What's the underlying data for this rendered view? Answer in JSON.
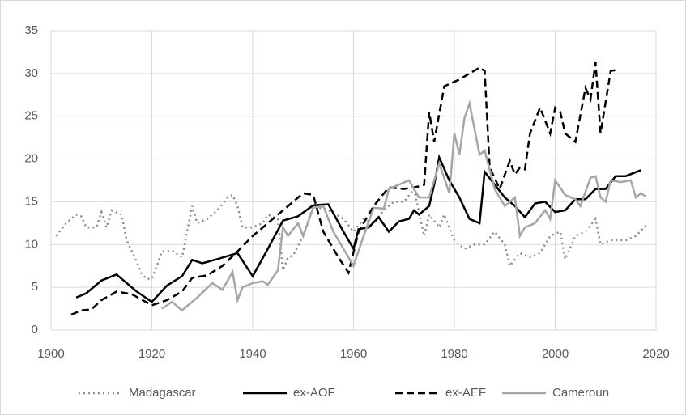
{
  "chart_data": {
    "type": "line",
    "xlim": [
      1900,
      2020
    ],
    "xticks": [
      1900,
      1920,
      1940,
      1960,
      1980,
      2000,
      2020
    ],
    "ylim": [
      0,
      35
    ],
    "yticks": [
      0,
      5,
      10,
      15,
      20,
      25,
      30,
      35
    ],
    "grid": true,
    "legend": "bottom",
    "series": [
      {
        "name": "Madagascar",
        "color": "#8c8c8c",
        "style": "dotted",
        "x": [
          1901,
          1903,
          1905,
          1906,
          1907,
          1909,
          1910,
          1911,
          1912,
          1914,
          1915,
          1917,
          1918,
          1919,
          1920,
          1921,
          1922,
          1924,
          1926,
          1928,
          1929,
          1931,
          1933,
          1935,
          1936,
          1937,
          1938,
          1940,
          1942,
          1943,
          1945,
          1946,
          1947,
          1948,
          1950,
          1952,
          1955,
          1958,
          1960,
          1962,
          1964,
          1966,
          1968,
          1970,
          1972,
          1974,
          1975,
          1977,
          1978,
          1980,
          1982,
          1984,
          1986,
          1988,
          1990,
          1991,
          1993,
          1995,
          1997,
          1999,
          2001,
          2002,
          2004,
          2006,
          2008,
          2009,
          2011,
          2014,
          2016,
          2018
        ],
        "values": [
          11,
          12.5,
          13.5,
          13.3,
          12,
          12,
          13.8,
          12,
          14,
          13.5,
          10.5,
          8,
          6.5,
          6,
          6,
          7.5,
          9.2,
          9.3,
          8.5,
          14.5,
          12.5,
          13,
          14,
          15.5,
          15.8,
          14.5,
          12,
          12,
          12.5,
          13.5,
          13,
          7,
          8.5,
          8.7,
          11,
          14.5,
          14,
          13,
          11.5,
          13,
          12.5,
          14,
          15,
          15,
          16.5,
          11,
          13.5,
          12,
          13.5,
          10.5,
          9.5,
          10,
          10,
          11.5,
          10,
          7.5,
          9,
          8.5,
          9,
          11,
          11.5,
          8.3,
          11,
          11.5,
          13,
          10,
          10.5,
          10.5,
          11,
          12.2
        ]
      },
      {
        "name": "ex-AOF",
        "color": "#000000",
        "style": "solid",
        "x": [
          1905,
          1907,
          1910,
          1913,
          1917,
          1920,
          1923,
          1926,
          1928,
          1930,
          1933,
          1937,
          1940,
          1943,
          1946,
          1949,
          1952,
          1955,
          1958,
          1960,
          1961,
          1963,
          1965,
          1967,
          1969,
          1971,
          1972,
          1973,
          1975,
          1976,
          1977,
          1979,
          1981,
          1983,
          1985,
          1986,
          1988,
          1990,
          1992,
          1994,
          1996,
          1998,
          2000,
          2002,
          2004,
          2006,
          2008,
          2010,
          2012,
          2014,
          2017
        ],
        "values": [
          3.8,
          4.3,
          5.8,
          6.5,
          4.5,
          3.3,
          5.2,
          6.3,
          8.2,
          7.8,
          8.3,
          9,
          6.3,
          9.5,
          12.8,
          13.3,
          14.6,
          14.7,
          11.5,
          9.5,
          11.8,
          12,
          13.2,
          11.5,
          12.7,
          13,
          14,
          13.5,
          14.5,
          17,
          20.2,
          17.5,
          15.5,
          13,
          12.5,
          18.5,
          17,
          15.5,
          14.5,
          13.2,
          14.8,
          15,
          13.8,
          14,
          15.3,
          15.3,
          16.5,
          16.5,
          18,
          18,
          18.7
        ]
      },
      {
        "name": "ex-AEF",
        "color": "#000000",
        "style": "dashed",
        "x": [
          1904,
          1906,
          1908,
          1910,
          1913,
          1916,
          1920,
          1923,
          1926,
          1928,
          1931,
          1934,
          1937,
          1940,
          1943,
          1946,
          1950,
          1952,
          1954,
          1957,
          1959,
          1961,
          1964,
          1967,
          1970,
          1973,
          1974,
          1975,
          1976,
          1978,
          1981,
          1985,
          1986,
          1987,
          1989,
          1991,
          1992,
          1993,
          1994,
          1995,
          1997,
          1999,
          2000,
          2001,
          2002,
          2004,
          2006,
          2007,
          2008,
          2009,
          2011,
          2012
        ],
        "values": [
          1.8,
          2.3,
          2.4,
          3.5,
          4.5,
          4.2,
          2.9,
          3.5,
          4.5,
          6.1,
          6.4,
          7.5,
          9.2,
          11,
          12.5,
          14,
          16,
          15.8,
          11.5,
          8.5,
          6.7,
          11.5,
          14.5,
          16.7,
          16.5,
          16.8,
          17,
          25.5,
          22,
          28.5,
          29.3,
          30.7,
          30.3,
          19,
          16.5,
          19.8,
          18.2,
          19,
          18.8,
          23,
          26,
          23,
          26,
          25.5,
          23,
          22,
          28.3,
          27,
          31.3,
          23,
          30.3,
          30.4
        ]
      },
      {
        "name": "Cameroun",
        "color": "#a6a6a6",
        "style": "solid",
        "x": [
          1922,
          1924,
          1926,
          1929,
          1932,
          1934,
          1936,
          1937,
          1938,
          1940,
          1942,
          1943,
          1945,
          1946,
          1947,
          1949,
          1950,
          1952,
          1954,
          1956,
          1958,
          1960,
          1962,
          1964,
          1966,
          1967,
          1969,
          1971,
          1973,
          1975,
          1977,
          1979,
          1980,
          1981,
          1982,
          1983,
          1985,
          1986,
          1988,
          1990,
          1992,
          1993,
          1994,
          1996,
          1998,
          1999,
          2000,
          2002,
          2004,
          2005,
          2007,
          2008,
          2009,
          2010,
          2011,
          2013,
          2015,
          2016,
          2017,
          2018
        ],
        "values": [
          2.5,
          3.3,
          2.3,
          3.8,
          5.5,
          4.7,
          6.8,
          3.5,
          5,
          5.5,
          5.7,
          5.3,
          7,
          12,
          11,
          12.5,
          11,
          14.3,
          14.5,
          11.5,
          9.5,
          7.5,
          11,
          14.3,
          14.2,
          16.5,
          17,
          17.5,
          15.5,
          15.5,
          19.5,
          16,
          23,
          20.5,
          24.8,
          26.5,
          20.5,
          21,
          16.5,
          14.5,
          15.5,
          11,
          12,
          12.5,
          14,
          13,
          17.5,
          15.8,
          15.3,
          14.5,
          17.8,
          18,
          15.5,
          15,
          17.5,
          17.3,
          17.5,
          15.5,
          16,
          15.6
        ]
      }
    ]
  }
}
